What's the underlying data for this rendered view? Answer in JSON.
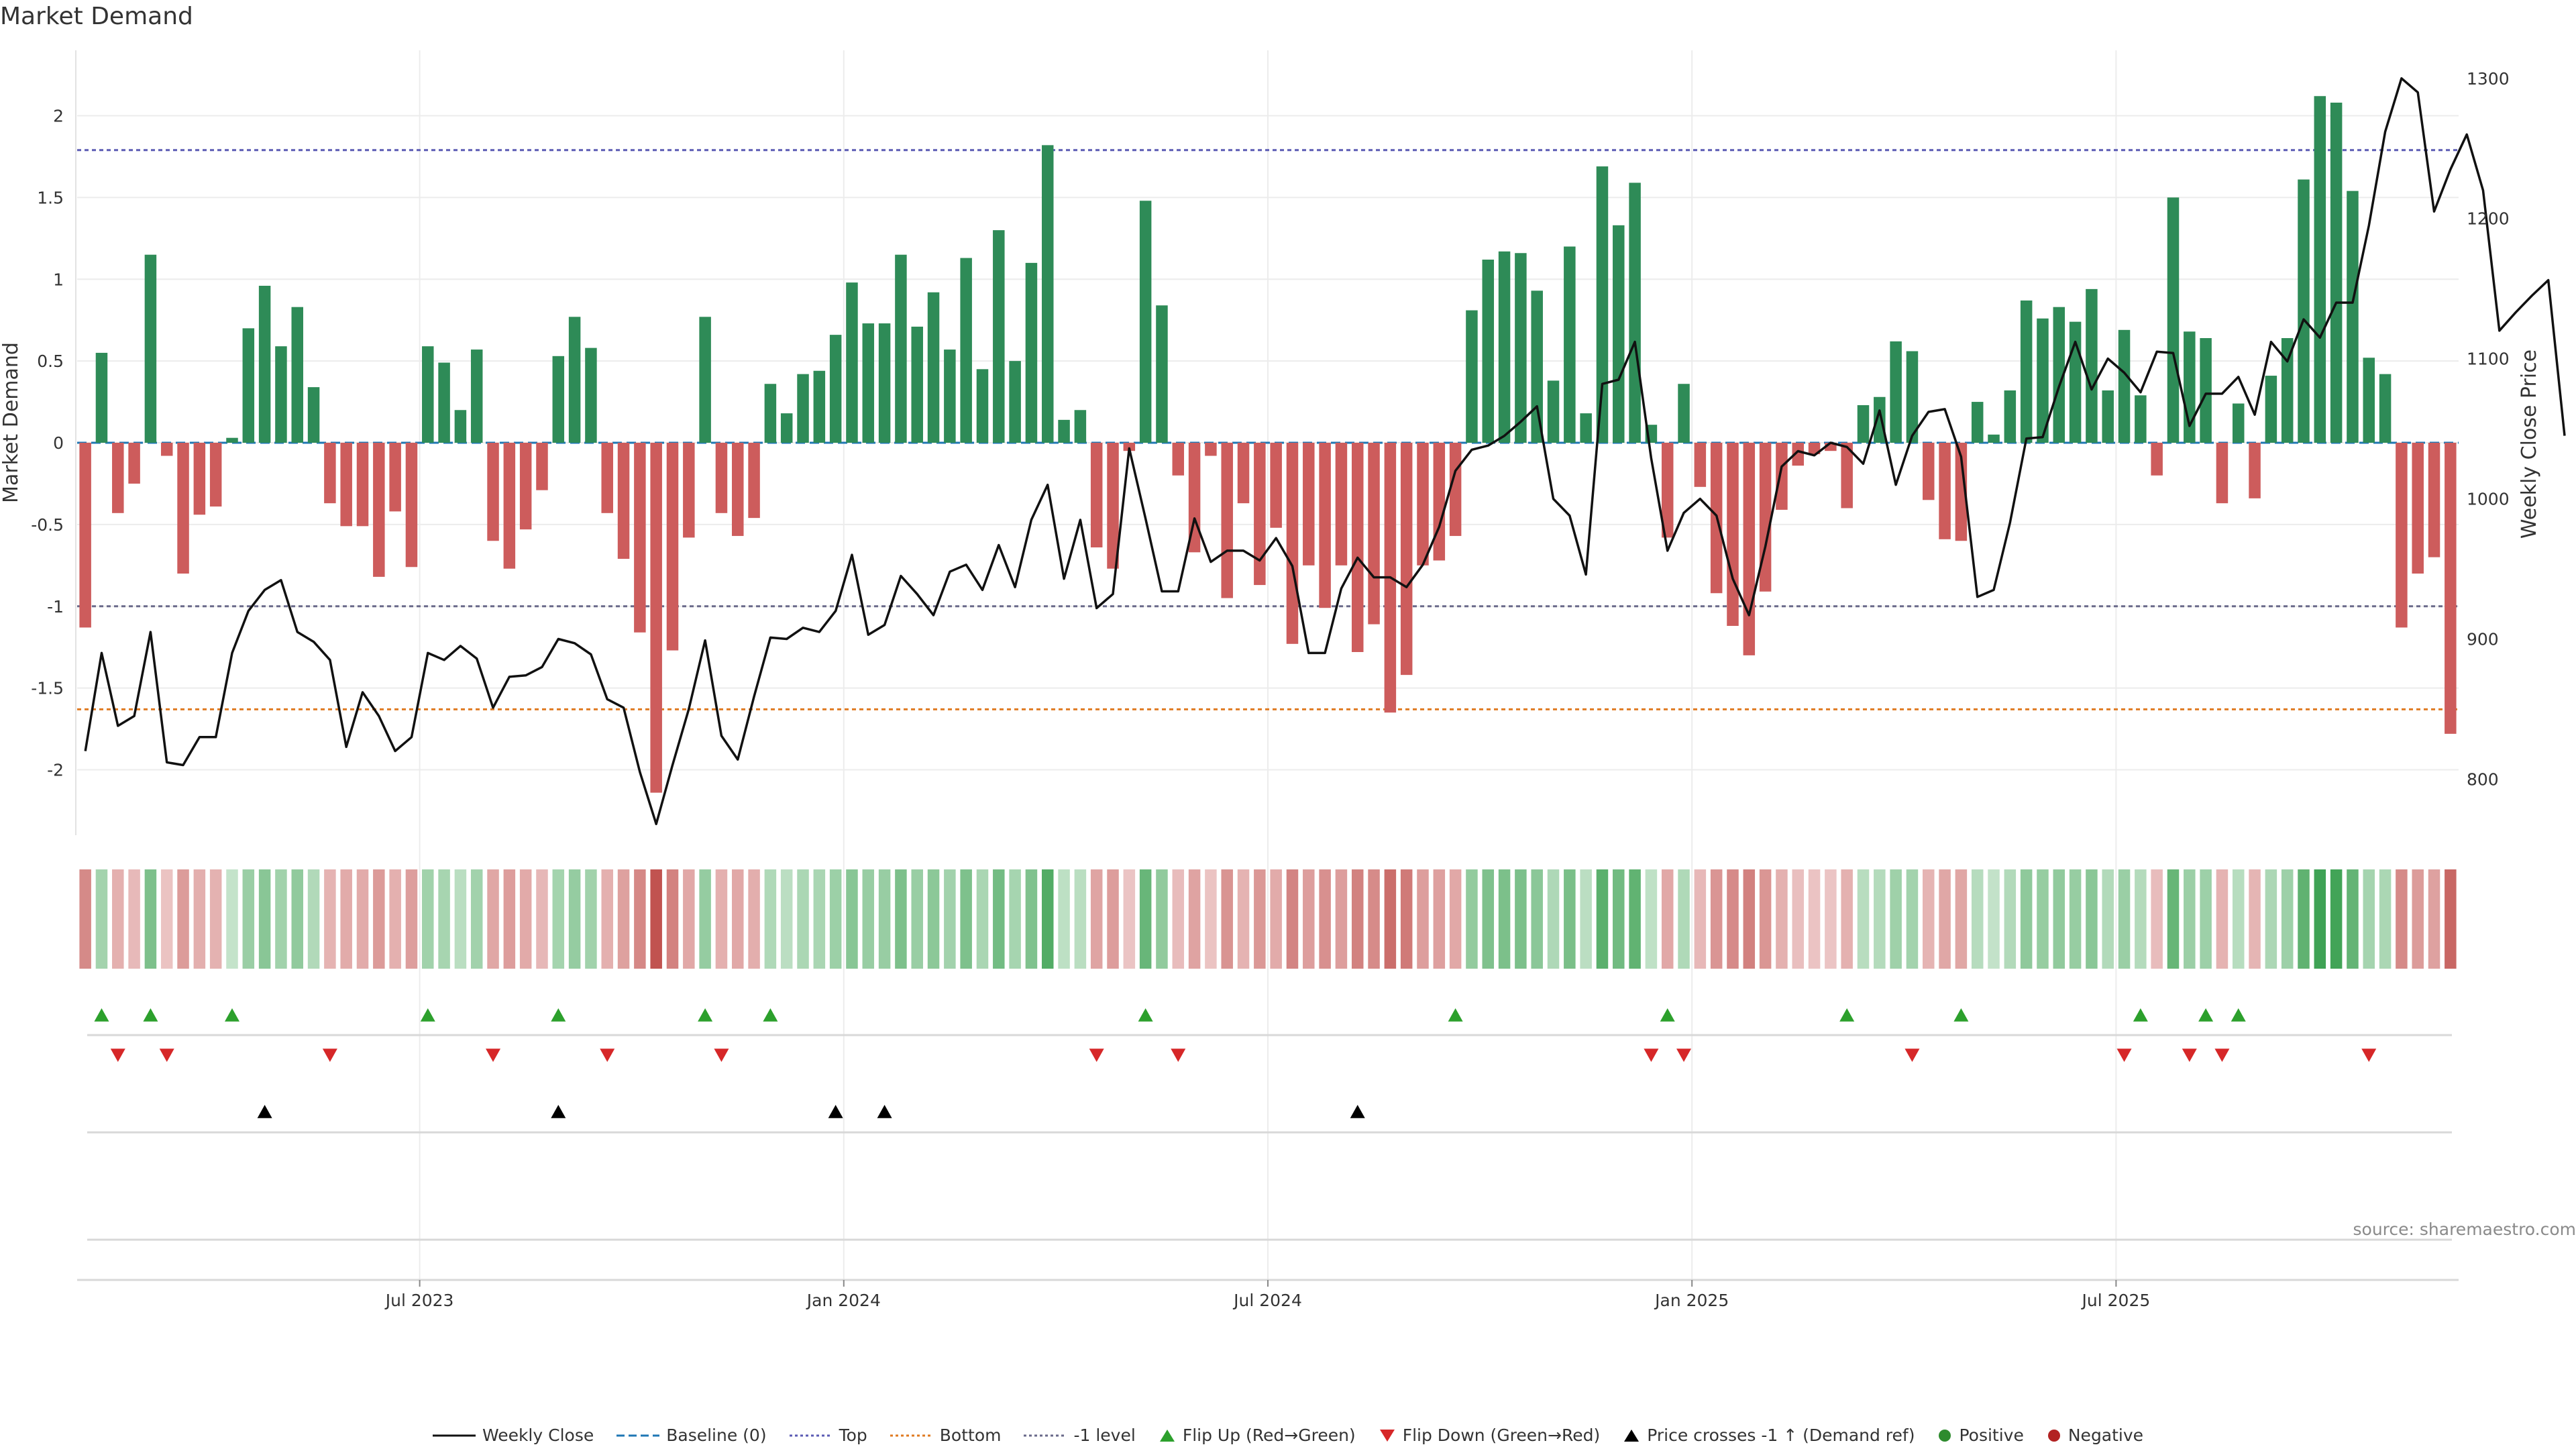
{
  "title": "Market Demand",
  "source": "source: sharemaestro.com",
  "colors": {
    "positive": "#2e8b57",
    "negative": "#cd5c5c",
    "price_line": "#111111",
    "baseline": "#1f77b4",
    "top": "#5b5bb4",
    "bottom": "#e07b22",
    "minus_one": "#6a6a8a",
    "flip_up": "#2ca02c",
    "flip_down": "#d62728",
    "cross": "#000000",
    "grid": "#ececec"
  },
  "chart_data": {
    "type": "bar",
    "title": "Market Demand",
    "ylabel": "Market Demand",
    "y2label": "Weekly Close Price",
    "ylim": [
      -2.4,
      2.4
    ],
    "y2lim": [
      760,
      1320
    ],
    "yticks": [
      "2",
      "1.5",
      "1",
      "0.5",
      "0",
      "-0.5",
      "-1",
      "-1.5",
      "-2"
    ],
    "y2ticks": [
      "1300",
      "1200",
      "1100",
      "1000",
      "900",
      "800"
    ],
    "xticks": [
      "Jul 2023",
      "Jan 2024",
      "Jul 2024",
      "Jan 2025",
      "Jul 2025"
    ],
    "xtick_index": [
      21,
      47,
      73,
      99,
      125
    ],
    "reference_lines": {
      "baseline": 0,
      "top": 1.79,
      "bottom": -1.63,
      "minus_one": -1
    },
    "demand": [
      -1.13,
      0.55,
      -0.43,
      -0.25,
      1.15,
      -0.08,
      -0.8,
      -0.44,
      -0.39,
      0.03,
      0.7,
      0.96,
      0.59,
      0.83,
      0.34,
      -0.37,
      -0.51,
      -0.51,
      -0.82,
      -0.42,
      -0.76,
      0.59,
      0.49,
      0.2,
      0.57,
      -0.6,
      -0.77,
      -0.53,
      -0.29,
      0.53,
      0.77,
      0.58,
      -0.43,
      -0.71,
      -1.16,
      -2.14,
      -1.27,
      -0.58,
      0.77,
      -0.43,
      -0.57,
      -0.46,
      0.36,
      0.18,
      0.42,
      0.44,
      0.66,
      0.98,
      0.73,
      0.73,
      1.15,
      0.71,
      0.92,
      0.57,
      1.13,
      0.45,
      1.3,
      0.5,
      1.1,
      1.82,
      0.14,
      0.2,
      -0.64,
      -0.77,
      -0.05,
      1.48,
      0.84,
      -0.2,
      -0.67,
      -0.08,
      -0.95,
      -0.37,
      -0.87,
      -0.52,
      -1.23,
      -0.75,
      -1.01,
      -0.75,
      -1.28,
      -1.11,
      -1.65,
      -1.42,
      -0.75,
      -0.72,
      -0.57,
      0.81,
      1.12,
      1.17,
      1.16,
      0.93,
      0.38,
      1.2,
      0.18,
      1.69,
      1.33,
      1.59,
      0.11,
      -0.58,
      0.36,
      -0.27,
      -0.92,
      -1.12,
      -1.3,
      -0.91,
      -0.41,
      -0.14,
      -0.07,
      -0.05,
      -0.4,
      0.23,
      0.28,
      0.62,
      0.56,
      -0.35,
      -0.59,
      -0.6,
      0.25,
      0.05,
      0.32,
      0.87,
      0.76,
      0.83,
      0.74,
      0.94,
      0.32,
      0.69,
      0.29,
      -0.2,
      1.5,
      0.68,
      0.64,
      -0.37,
      0.24,
      -0.34,
      0.41,
      0.64,
      1.61,
      2.12,
      2.08,
      1.54,
      0.52,
      0.42,
      -1.13,
      -0.8,
      -0.7,
      -1.78
    ],
    "weekly_close": [
      820,
      890,
      838,
      845,
      905,
      812,
      810,
      830,
      830,
      890,
      920,
      935,
      942,
      905,
      898,
      885,
      823,
      862,
      845,
      820,
      830,
      890,
      885,
      895,
      886,
      851,
      873,
      874,
      880,
      900,
      897,
      889,
      857,
      851,
      805,
      768,
      810,
      850,
      899,
      831,
      814,
      859,
      901,
      900,
      908,
      905,
      920,
      960,
      903,
      910,
      945,
      932,
      917,
      948,
      953,
      935,
      967,
      937,
      985,
      1010,
      943,
      985,
      922,
      932,
      1036,
      986,
      934,
      934,
      986,
      955,
      963,
      963,
      956,
      972,
      952,
      890,
      890,
      936,
      958,
      944,
      944,
      937,
      953,
      980,
      1020,
      1035,
      1038,
      1045,
      1055,
      1066,
      1000,
      988,
      946,
      1082,
      1085,
      1112,
      1029,
      963,
      990,
      1000,
      988,
      943,
      917,
      966,
      1023,
      1034,
      1031,
      1040,
      1037,
      1025,
      1063,
      1010,
      1045,
      1062,
      1064,
      1030,
      930,
      935,
      983,
      1043,
      1044,
      1080,
      1112,
      1078,
      1100,
      1090,
      1076,
      1105,
      1104,
      1052,
      1075,
      1075,
      1087,
      1060,
      1112,
      1098,
      1128,
      1115,
      1140,
      1140,
      1195,
      1262,
      1300,
      1290,
      1205,
      1235,
      1260,
      1220,
      1120,
      1133,
      1145,
      1156,
      1045
    ],
    "flip_up_index": [
      1,
      4,
      9,
      21,
      29,
      38,
      42,
      65,
      84,
      97,
      108,
      115,
      126,
      130,
      132
    ],
    "flip_down_index": [
      2,
      5,
      15,
      25,
      32,
      39,
      62,
      67,
      96,
      98,
      112,
      125,
      129,
      131,
      140
    ],
    "cross_up_index": [
      11,
      29,
      46,
      49,
      78
    ],
    "legend": [
      "Weekly Close",
      "Baseline (0)",
      "Top",
      "Bottom",
      "-1 level",
      "Flip Up (Red→Green)",
      "Flip Down (Green→Red)",
      "Price crosses -1 ↑ (Demand ref)",
      "Positive",
      "Negative"
    ]
  }
}
